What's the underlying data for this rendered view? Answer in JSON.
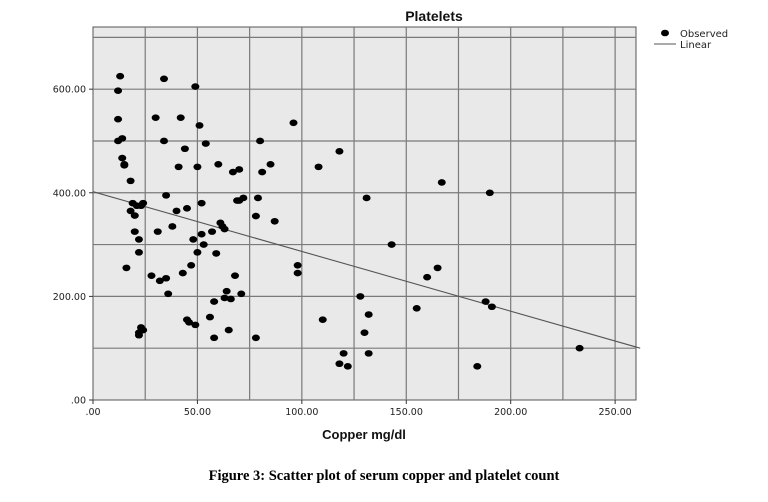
{
  "caption": "Figure 3: Scatter plot of serum copper and platelet count",
  "chart_data": {
    "type": "scatter",
    "title": "Platelets",
    "xlabel": "Copper mg/dl",
    "ylabel": "",
    "xlim": [
      0,
      260
    ],
    "ylim": [
      0,
      720
    ],
    "x_ticks": [
      0,
      50,
      100,
      150,
      200,
      250
    ],
    "x_tick_labels": [
      ".00",
      "50.00",
      "100.00",
      "150.00",
      "200.00",
      "250.00"
    ],
    "y_ticks": [
      0,
      200,
      400,
      600
    ],
    "y_tick_labels": [
      ".00",
      "200.00",
      "400.00",
      "600.00"
    ],
    "x_grid": [
      25,
      50,
      75,
      100,
      125,
      150,
      175,
      200,
      225,
      250
    ],
    "y_grid": [
      100,
      200,
      300,
      400,
      500,
      600,
      700
    ],
    "grid": true,
    "legend_position": "top-right",
    "series": [
      {
        "name": "Observed",
        "kind": "points",
        "color": "#000000",
        "x": [
          12,
          13,
          12,
          14,
          12,
          14,
          15,
          15,
          18,
          19,
          18,
          20,
          21,
          20,
          22,
          23,
          22,
          23,
          24,
          16,
          22,
          24,
          28,
          30,
          31,
          32,
          34,
          34,
          35,
          35,
          36,
          38,
          40,
          41,
          42,
          43,
          44,
          45,
          45,
          46,
          47,
          48,
          49,
          49,
          50,
          50,
          51,
          52,
          52,
          53,
          54,
          56,
          57,
          58,
          58,
          59,
          60,
          61,
          62,
          63,
          63,
          64,
          65,
          66,
          67,
          68,
          69,
          70,
          70,
          71,
          72,
          78,
          78,
          79,
          80,
          81,
          85,
          87,
          96,
          98,
          98,
          108,
          110,
          118,
          118,
          120,
          122,
          128,
          130,
          131,
          132,
          132,
          143,
          155,
          160,
          165,
          167,
          184,
          188,
          190,
          191,
          233,
          22
        ],
        "y": [
          597,
          625,
          542,
          505,
          500,
          467,
          453,
          455,
          423,
          380,
          365,
          356,
          375,
          325,
          310,
          375,
          285,
          140,
          135,
          255,
          125,
          380,
          240,
          545,
          325,
          230,
          620,
          500,
          395,
          235,
          205,
          335,
          365,
          450,
          545,
          245,
          485,
          370,
          155,
          150,
          260,
          310,
          605,
          145,
          285,
          450,
          530,
          380,
          320,
          300,
          495,
          160,
          325,
          120,
          190,
          283,
          455,
          342,
          335,
          197,
          330,
          210,
          135,
          195,
          440,
          240,
          385,
          385,
          445,
          205,
          390,
          120,
          355,
          390,
          500,
          440,
          455,
          345,
          535,
          260,
          245,
          450,
          155,
          480,
          70,
          90,
          65,
          200,
          130,
          390,
          165,
          90,
          300,
          177,
          237,
          255,
          420,
          65,
          190,
          400,
          180,
          100,
          130
        ]
      },
      {
        "name": "Linear",
        "kind": "line",
        "color": "#555555",
        "x": [
          0,
          262
        ],
        "y": [
          402,
          100
        ]
      }
    ]
  }
}
